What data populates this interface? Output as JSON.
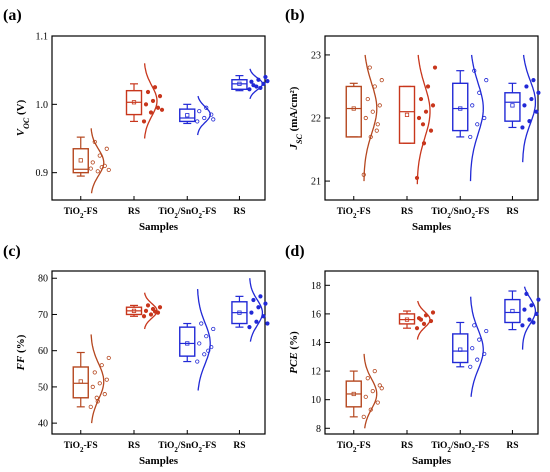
{
  "colors": {
    "tio2_fs": "#b5471f",
    "rs_tio2": "#c8361c",
    "tio2_sno2_fs": "#2129d6",
    "rs_sno2": "#2129d6",
    "axis": "#000000"
  },
  "chart_data": [
    {
      "panel": "(a)",
      "type": "box",
      "ylabel_main": "V",
      "ylabel_sub": "OC",
      "ylabel_unit": " (V)",
      "ylim": [
        0.86,
        1.1
      ],
      "yticks": [
        "0.9",
        "1.0",
        "1.1"
      ],
      "ytick_values": [
        0.9,
        1.0,
        1.1
      ],
      "categories": [
        "TiO2-FS",
        "RS",
        "TiO2/SnO2-FS",
        "RS"
      ],
      "category_display": [
        [
          "TiO",
          "2",
          "-FS"
        ],
        [
          "RS"
        ],
        [
          "TiO",
          "2",
          "/SnO",
          "2",
          "-FS"
        ],
        [
          "RS"
        ]
      ],
      "xlabel": "Samples",
      "series": [
        {
          "q1": 0.9,
          "median": 0.905,
          "q3": 0.935,
          "min": 0.895,
          "max": 0.952,
          "mean": 0.918,
          "points": [
            0.906,
            0.902,
            0.91,
            0.915,
            0.925,
            0.935,
            0.945,
            0.908,
            0.904
          ],
          "dist": [
            0.87,
            0.915,
            0.965
          ]
        },
        {
          "q1": 0.985,
          "median": 1.003,
          "q3": 1.02,
          "min": 0.975,
          "max": 1.03,
          "mean": 1.003,
          "points": [
            0.975,
            0.988,
            0.995,
            1.0,
            1.005,
            1.012,
            1.018,
            1.025,
            0.992
          ],
          "dist": [
            0.95,
            1.005,
            1.06
          ]
        },
        {
          "q1": 0.975,
          "median": 0.98,
          "q3": 0.993,
          "min": 0.972,
          "max": 1.0,
          "mean": 0.984,
          "points": [
            0.975,
            0.98,
            0.985,
            0.99,
            0.995,
            0.978
          ],
          "dist": [
            0.955,
            0.985,
            1.012
          ]
        },
        {
          "q1": 1.022,
          "median": 1.03,
          "q3": 1.036,
          "min": 1.02,
          "max": 1.042,
          "mean": 1.03,
          "points": [
            1.022,
            1.026,
            1.03,
            1.033,
            1.036,
            1.04,
            1.028,
            1.024,
            1.034
          ],
          "dist": [
            1.008,
            1.03,
            1.052
          ]
        }
      ]
    },
    {
      "panel": "(b)",
      "type": "box",
      "ylabel_main": "J",
      "ylabel_sub": "SC",
      "ylabel_unit": " (mA/cm²)",
      "ylim": [
        20.7,
        23.3
      ],
      "yticks": [
        "21",
        "22",
        "23"
      ],
      "ytick_values": [
        21,
        22,
        23
      ],
      "categories": [
        "TiO2-FS",
        "RS",
        "TiO2/SnO2-FS",
        "RS"
      ],
      "category_display": [
        [
          "TiO",
          "2",
          "-FS"
        ],
        [
          "RS"
        ],
        [
          "TiO",
          "2",
          "/SnO",
          "2",
          "-FS"
        ],
        [
          "RS"
        ]
      ],
      "xlabel": "Samples",
      "series": [
        {
          "q1": 21.7,
          "median": 22.15,
          "q3": 22.5,
          "min": 21.7,
          "max": 22.55,
          "mean": 22.15,
          "points": [
            21.1,
            21.7,
            21.9,
            22.0,
            22.1,
            22.2,
            22.3,
            22.5,
            22.6,
            22.8,
            21.8
          ],
          "dist": [
            21.0,
            22.15,
            23.0
          ]
        },
        {
          "q1": 21.6,
          "median": 22.1,
          "q3": 22.5,
          "min": 21.6,
          "max": 22.5,
          "mean": 22.05,
          "points": [
            21.05,
            21.6,
            21.8,
            22.0,
            22.1,
            22.2,
            22.3,
            22.5,
            22.8,
            21.9
          ],
          "dist": [
            20.95,
            22.1,
            23.0
          ]
        },
        {
          "q1": 21.8,
          "median": 22.15,
          "q3": 22.55,
          "min": 21.7,
          "max": 22.75,
          "mean": 22.15,
          "points": [
            21.7,
            21.9,
            22.0,
            22.2,
            22.4,
            22.6,
            22.75
          ],
          "dist": [
            21.0,
            22.15,
            23.0
          ]
        },
        {
          "q1": 21.95,
          "median": 22.25,
          "q3": 22.4,
          "min": 21.85,
          "max": 22.55,
          "mean": 22.2,
          "points": [
            21.85,
            21.95,
            22.1,
            22.2,
            22.3,
            22.4,
            22.5,
            22.6
          ],
          "dist": [
            21.3,
            22.25,
            23.0
          ]
        }
      ]
    },
    {
      "panel": "(c)",
      "type": "box",
      "ylabel_main": "FF",
      "ylabel_sub": "",
      "ylabel_unit": " (%)",
      "ylim": [
        37,
        82
      ],
      "yticks": [
        "40",
        "50",
        "60",
        "70",
        "80"
      ],
      "ytick_values": [
        40,
        50,
        60,
        70,
        80
      ],
      "categories": [
        "TiO2-FS",
        "RS",
        "TiO2/SnO2-FS",
        "RS"
      ],
      "category_display": [
        [
          "TiO",
          "2",
          "-FS"
        ],
        [
          "RS"
        ],
        [
          "TiO",
          "2",
          "/SnO",
          "2",
          "-FS"
        ],
        [
          "RS"
        ]
      ],
      "xlabel": "Samples",
      "series": [
        {
          "q1": 47,
          "median": 51,
          "q3": 55.5,
          "min": 44.5,
          "max": 59.5,
          "mean": 51.5,
          "points": [
            44.5,
            46,
            48,
            50,
            51,
            52,
            54,
            56,
            58,
            47
          ],
          "dist": [
            40,
            51.5,
            64.5
          ]
        },
        {
          "q1": 70,
          "median": 71,
          "q3": 72,
          "min": 69.5,
          "max": 72.5,
          "mean": 71,
          "points": [
            69.5,
            70,
            70.5,
            71,
            71.5,
            72,
            72.5,
            70.8
          ],
          "dist": [
            66,
            71,
            76
          ]
        },
        {
          "q1": 58.5,
          "median": 62,
          "q3": 66.5,
          "min": 57,
          "max": 67.5,
          "mean": 62,
          "points": [
            57,
            59,
            61,
            62,
            64,
            66,
            67.5,
            60
          ],
          "dist": [
            49,
            62,
            77
          ]
        },
        {
          "q1": 67.5,
          "median": 70.5,
          "q3": 73.5,
          "min": 66.5,
          "max": 75,
          "mean": 70.5,
          "points": [
            66.5,
            68,
            69.5,
            70.5,
            72,
            73,
            74,
            75,
            67.5
          ],
          "dist": [
            62.5,
            70.5,
            80
          ]
        }
      ]
    },
    {
      "panel": "(d)",
      "type": "box",
      "ylabel_main": "PCE",
      "ylabel_sub": "",
      "ylabel_unit": " (%)",
      "ylim": [
        7.6,
        19
      ],
      "yticks": [
        "8",
        "10",
        "12",
        "14",
        "16",
        "18"
      ],
      "ytick_values": [
        8,
        10,
        12,
        14,
        16,
        18
      ],
      "categories": [
        "TiO2-FS",
        "RS",
        "TiO2/SnO2-FS",
        "RS"
      ],
      "category_display": [
        [
          "TiO",
          "2",
          "-FS"
        ],
        [
          "RS"
        ],
        [
          "TiO",
          "2",
          "/SnO",
          "2",
          "-FS"
        ],
        [
          "RS"
        ]
      ],
      "xlabel": "Samples",
      "series": [
        {
          "q1": 9.5,
          "median": 10.4,
          "q3": 11.3,
          "min": 8.8,
          "max": 12.0,
          "mean": 10.4,
          "points": [
            8.8,
            9.3,
            9.8,
            10.2,
            10.6,
            11.0,
            11.5,
            12.0,
            10.8
          ],
          "dist": [
            8.0,
            10.4,
            13.2
          ]
        },
        {
          "q1": 15.3,
          "median": 15.6,
          "q3": 16.0,
          "min": 15.0,
          "max": 16.2,
          "mean": 15.6,
          "points": [
            15.0,
            15.3,
            15.5,
            15.7,
            15.9,
            16.1,
            15.6
          ],
          "dist": [
            14.2,
            15.6,
            16.9
          ]
        },
        {
          "q1": 12.6,
          "median": 13.4,
          "q3": 14.6,
          "min": 12.3,
          "max": 15.4,
          "mean": 13.5,
          "points": [
            12.3,
            12.8,
            13.2,
            13.6,
            14.2,
            14.8,
            15.2
          ],
          "dist": [
            10.2,
            13.5,
            17.2
          ]
        },
        {
          "q1": 15.4,
          "median": 16.1,
          "q3": 17.0,
          "min": 14.9,
          "max": 17.6,
          "mean": 16.2,
          "points": [
            15.2,
            15.6,
            16.0,
            16.3,
            16.6,
            17.0,
            17.4,
            15.4
          ],
          "dist": [
            13.5,
            16.2,
            17.9
          ]
        }
      ]
    }
  ]
}
